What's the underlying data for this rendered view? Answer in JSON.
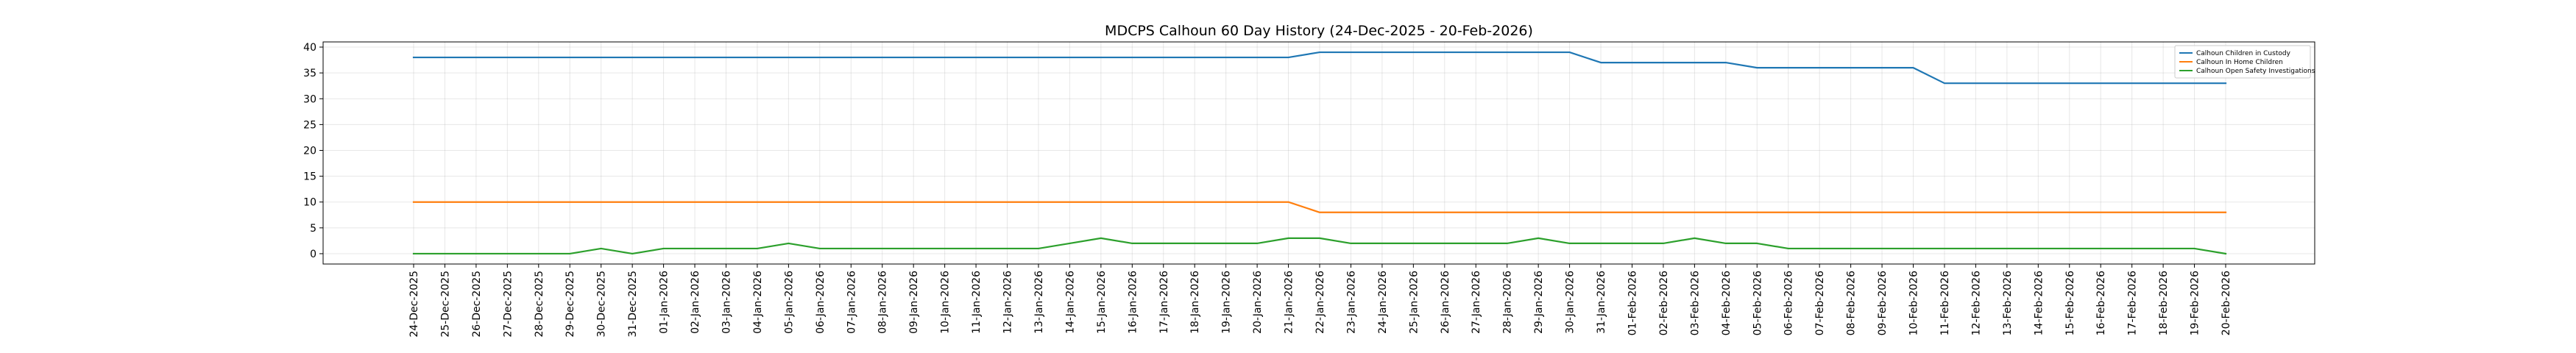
{
  "chart_data": {
    "type": "line",
    "title": "MDCPS Calhoun 60 Day History (24-Dec-2025 - 20-Feb-2026)",
    "xlabel": "",
    "ylabel": "",
    "ylim": [
      -2,
      41
    ],
    "yticks": [
      0,
      5,
      10,
      15,
      20,
      25,
      30,
      35,
      40
    ],
    "grid": true,
    "legend_position": "top-right",
    "categories": [
      "24-Dec-2025",
      "25-Dec-2025",
      "26-Dec-2025",
      "27-Dec-2025",
      "28-Dec-2025",
      "29-Dec-2025",
      "30-Dec-2025",
      "31-Dec-2025",
      "01-Jan-2026",
      "02-Jan-2026",
      "03-Jan-2026",
      "04-Jan-2026",
      "05-Jan-2026",
      "06-Jan-2026",
      "07-Jan-2026",
      "08-Jan-2026",
      "09-Jan-2026",
      "10-Jan-2026",
      "11-Jan-2026",
      "12-Jan-2026",
      "13-Jan-2026",
      "14-Jan-2026",
      "15-Jan-2026",
      "16-Jan-2026",
      "17-Jan-2026",
      "18-Jan-2026",
      "19-Jan-2026",
      "20-Jan-2026",
      "21-Jan-2026",
      "22-Jan-2026",
      "23-Jan-2026",
      "24-Jan-2026",
      "25-Jan-2026",
      "26-Jan-2026",
      "27-Jan-2026",
      "28-Jan-2026",
      "29-Jan-2026",
      "30-Jan-2026",
      "31-Jan-2026",
      "01-Feb-2026",
      "02-Feb-2026",
      "03-Feb-2026",
      "04-Feb-2026",
      "05-Feb-2026",
      "06-Feb-2026",
      "07-Feb-2026",
      "08-Feb-2026",
      "09-Feb-2026",
      "10-Feb-2026",
      "11-Feb-2026",
      "12-Feb-2026",
      "13-Feb-2026",
      "14-Feb-2026",
      "15-Feb-2026",
      "16-Feb-2026",
      "17-Feb-2026",
      "18-Feb-2026",
      "19-Feb-2026",
      "20-Feb-2026"
    ],
    "series": [
      {
        "name": "Calhoun Children in Custody",
        "color": "#1f77b4",
        "values": [
          38,
          38,
          38,
          38,
          38,
          38,
          38,
          38,
          38,
          38,
          38,
          38,
          38,
          38,
          38,
          38,
          38,
          38,
          38,
          38,
          38,
          38,
          38,
          38,
          38,
          38,
          38,
          38,
          38,
          39,
          39,
          39,
          39,
          39,
          39,
          39,
          39,
          39,
          37,
          37,
          37,
          37,
          37,
          36,
          36,
          36,
          36,
          36,
          36,
          33,
          33,
          33,
          33,
          33,
          33,
          33,
          33,
          33,
          33
        ]
      },
      {
        "name": "Calhoun In Home Children",
        "color": "#ff7f0e",
        "values": [
          10,
          10,
          10,
          10,
          10,
          10,
          10,
          10,
          10,
          10,
          10,
          10,
          10,
          10,
          10,
          10,
          10,
          10,
          10,
          10,
          10,
          10,
          10,
          10,
          10,
          10,
          10,
          10,
          10,
          8,
          8,
          8,
          8,
          8,
          8,
          8,
          8,
          8,
          8,
          8,
          8,
          8,
          8,
          8,
          8,
          8,
          8,
          8,
          8,
          8,
          8,
          8,
          8,
          8,
          8,
          8,
          8,
          8,
          8
        ]
      },
      {
        "name": "Calhoun Open Safety Investigations",
        "color": "#2ca02c",
        "values": [
          0,
          0,
          0,
          0,
          0,
          0,
          1,
          0,
          1,
          1,
          1,
          1,
          2,
          1,
          1,
          1,
          1,
          1,
          1,
          1,
          1,
          2,
          3,
          2,
          2,
          2,
          2,
          2,
          3,
          3,
          2,
          2,
          2,
          2,
          2,
          2,
          3,
          2,
          2,
          2,
          2,
          3,
          2,
          2,
          1,
          1,
          1,
          1,
          1,
          1,
          1,
          1,
          1,
          1,
          1,
          1,
          1,
          1,
          0
        ]
      }
    ]
  }
}
